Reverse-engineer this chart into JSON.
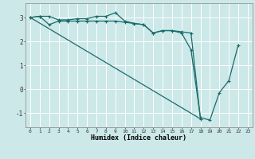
{
  "xlabel": "Humidex (Indice chaleur)",
  "bg_color": "#cce8e8",
  "grid_color": "#ffffff",
  "line_color": "#1a6b6b",
  "xlim": [
    -0.5,
    23.5
  ],
  "ylim": [
    -1.6,
    3.6
  ],
  "yticks": [
    -1,
    0,
    1,
    2,
    3
  ],
  "xticks": [
    0,
    1,
    2,
    3,
    4,
    5,
    6,
    7,
    8,
    9,
    10,
    11,
    12,
    13,
    14,
    15,
    16,
    17,
    18,
    19,
    20,
    21,
    22,
    23
  ],
  "line1_x": [
    0,
    1,
    2,
    3,
    4,
    5,
    6,
    7,
    8,
    9,
    10,
    11,
    12,
    13,
    14,
    15,
    16,
    17,
    18,
    19,
    20,
    21,
    22
  ],
  "line1_y": [
    3.0,
    3.05,
    3.05,
    2.9,
    2.9,
    2.95,
    2.95,
    3.05,
    3.05,
    3.2,
    2.85,
    2.75,
    2.7,
    2.35,
    2.45,
    2.45,
    2.35,
    1.65,
    -1.2,
    -1.3,
    -0.15,
    0.35,
    1.85
  ],
  "line2_x": [
    0,
    1,
    2,
    3,
    4,
    5,
    6,
    7,
    8,
    9,
    10,
    11,
    12,
    13,
    14,
    15,
    16,
    17,
    18
  ],
  "line2_y": [
    3.0,
    3.05,
    2.7,
    2.85,
    2.85,
    2.85,
    2.85,
    2.85,
    2.85,
    2.85,
    2.8,
    2.75,
    2.7,
    2.35,
    2.45,
    2.45,
    2.4,
    2.35,
    -1.25
  ],
  "line3_x": [
    0,
    18
  ],
  "line3_y": [
    3.0,
    -1.25
  ]
}
